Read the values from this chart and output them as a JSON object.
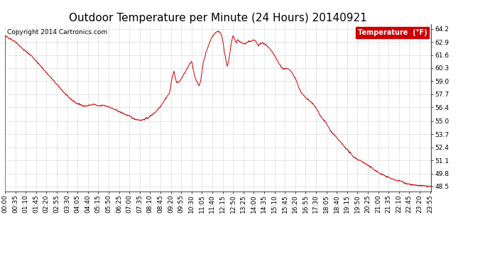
{
  "title": "Outdoor Temperature per Minute (24 Hours) 20140921",
  "copyright_text": "Copyright 2014 Cartronics.com",
  "legend_label": "Temperature  (°F)",
  "legend_bg": "#cc0000",
  "legend_text_color": "#ffffff",
  "line_color": "#cc0000",
  "background_color": "#ffffff",
  "grid_color": "#bbbbbb",
  "yticks": [
    48.5,
    49.8,
    51.1,
    52.4,
    53.7,
    55.0,
    56.4,
    57.7,
    59.0,
    60.3,
    61.6,
    62.9,
    64.2
  ],
  "ylim": [
    48.0,
    64.7
  ],
  "num_minutes": 1440,
  "x_tick_interval": 35,
  "title_fontsize": 11,
  "axis_fontsize": 6.5,
  "copyright_fontsize": 6.5,
  "control_points": [
    [
      0,
      63.5
    ],
    [
      20,
      63.2
    ],
    [
      40,
      62.8
    ],
    [
      60,
      62.2
    ],
    [
      90,
      61.5
    ],
    [
      120,
      60.5
    ],
    [
      150,
      59.5
    ],
    [
      180,
      58.5
    ],
    [
      210,
      57.5
    ],
    [
      240,
      56.8
    ],
    [
      260,
      56.6
    ],
    [
      270,
      56.5
    ],
    [
      285,
      56.6
    ],
    [
      300,
      56.7
    ],
    [
      315,
      56.5
    ],
    [
      330,
      56.6
    ],
    [
      345,
      56.5
    ],
    [
      360,
      56.3
    ],
    [
      375,
      56.1
    ],
    [
      390,
      55.9
    ],
    [
      405,
      55.7
    ],
    [
      420,
      55.5
    ],
    [
      440,
      55.2
    ],
    [
      460,
      55.1
    ],
    [
      480,
      55.3
    ],
    [
      495,
      55.6
    ],
    [
      510,
      56.0
    ],
    [
      525,
      56.5
    ],
    [
      540,
      57.2
    ],
    [
      555,
      57.8
    ],
    [
      565,
      59.5
    ],
    [
      570,
      60.0
    ],
    [
      575,
      59.3
    ],
    [
      580,
      58.8
    ],
    [
      590,
      59.0
    ],
    [
      600,
      59.5
    ],
    [
      610,
      60.0
    ],
    [
      620,
      60.5
    ],
    [
      630,
      61.0
    ],
    [
      640,
      59.5
    ],
    [
      650,
      58.8
    ],
    [
      655,
      58.5
    ],
    [
      660,
      59.0
    ],
    [
      665,
      60.0
    ],
    [
      670,
      61.0
    ],
    [
      680,
      62.0
    ],
    [
      690,
      62.8
    ],
    [
      700,
      63.5
    ],
    [
      710,
      63.8
    ],
    [
      720,
      64.0
    ],
    [
      730,
      63.7
    ],
    [
      735,
      63.0
    ],
    [
      740,
      62.0
    ],
    [
      745,
      61.2
    ],
    [
      750,
      60.5
    ],
    [
      755,
      61.0
    ],
    [
      760,
      62.0
    ],
    [
      765,
      63.0
    ],
    [
      770,
      63.5
    ],
    [
      775,
      63.2
    ],
    [
      780,
      62.8
    ],
    [
      785,
      63.1
    ],
    [
      790,
      63.0
    ],
    [
      800,
      62.8
    ],
    [
      810,
      62.7
    ],
    [
      820,
      62.9
    ],
    [
      830,
      63.0
    ],
    [
      840,
      63.1
    ],
    [
      845,
      63.0
    ],
    [
      850,
      62.8
    ],
    [
      855,
      62.5
    ],
    [
      860,
      62.7
    ],
    [
      870,
      62.8
    ],
    [
      880,
      62.6
    ],
    [
      890,
      62.3
    ],
    [
      900,
      62.0
    ],
    [
      910,
      61.5
    ],
    [
      920,
      61.0
    ],
    [
      930,
      60.5
    ],
    [
      940,
      60.2
    ],
    [
      950,
      60.3
    ],
    [
      960,
      60.1
    ],
    [
      970,
      59.8
    ],
    [
      980,
      59.3
    ],
    [
      990,
      58.5
    ],
    [
      1000,
      57.8
    ],
    [
      1010,
      57.5
    ],
    [
      1020,
      57.2
    ],
    [
      1030,
      57.0
    ],
    [
      1040,
      56.7
    ],
    [
      1050,
      56.3
    ],
    [
      1060,
      55.8
    ],
    [
      1070,
      55.3
    ],
    [
      1080,
      55.0
    ],
    [
      1090,
      54.5
    ],
    [
      1100,
      54.0
    ],
    [
      1115,
      53.5
    ],
    [
      1130,
      53.0
    ],
    [
      1145,
      52.5
    ],
    [
      1160,
      52.0
    ],
    [
      1175,
      51.5
    ],
    [
      1190,
      51.2
    ],
    [
      1205,
      51.0
    ],
    [
      1220,
      50.7
    ],
    [
      1235,
      50.4
    ],
    [
      1250,
      50.1
    ],
    [
      1265,
      49.8
    ],
    [
      1280,
      49.6
    ],
    [
      1295,
      49.4
    ],
    [
      1310,
      49.2
    ],
    [
      1325,
      49.1
    ],
    [
      1340,
      49.0
    ],
    [
      1355,
      48.8
    ],
    [
      1370,
      48.7
    ],
    [
      1385,
      48.6
    ],
    [
      1400,
      48.6
    ],
    [
      1415,
      48.55
    ],
    [
      1430,
      48.52
    ],
    [
      1439,
      48.5
    ]
  ]
}
